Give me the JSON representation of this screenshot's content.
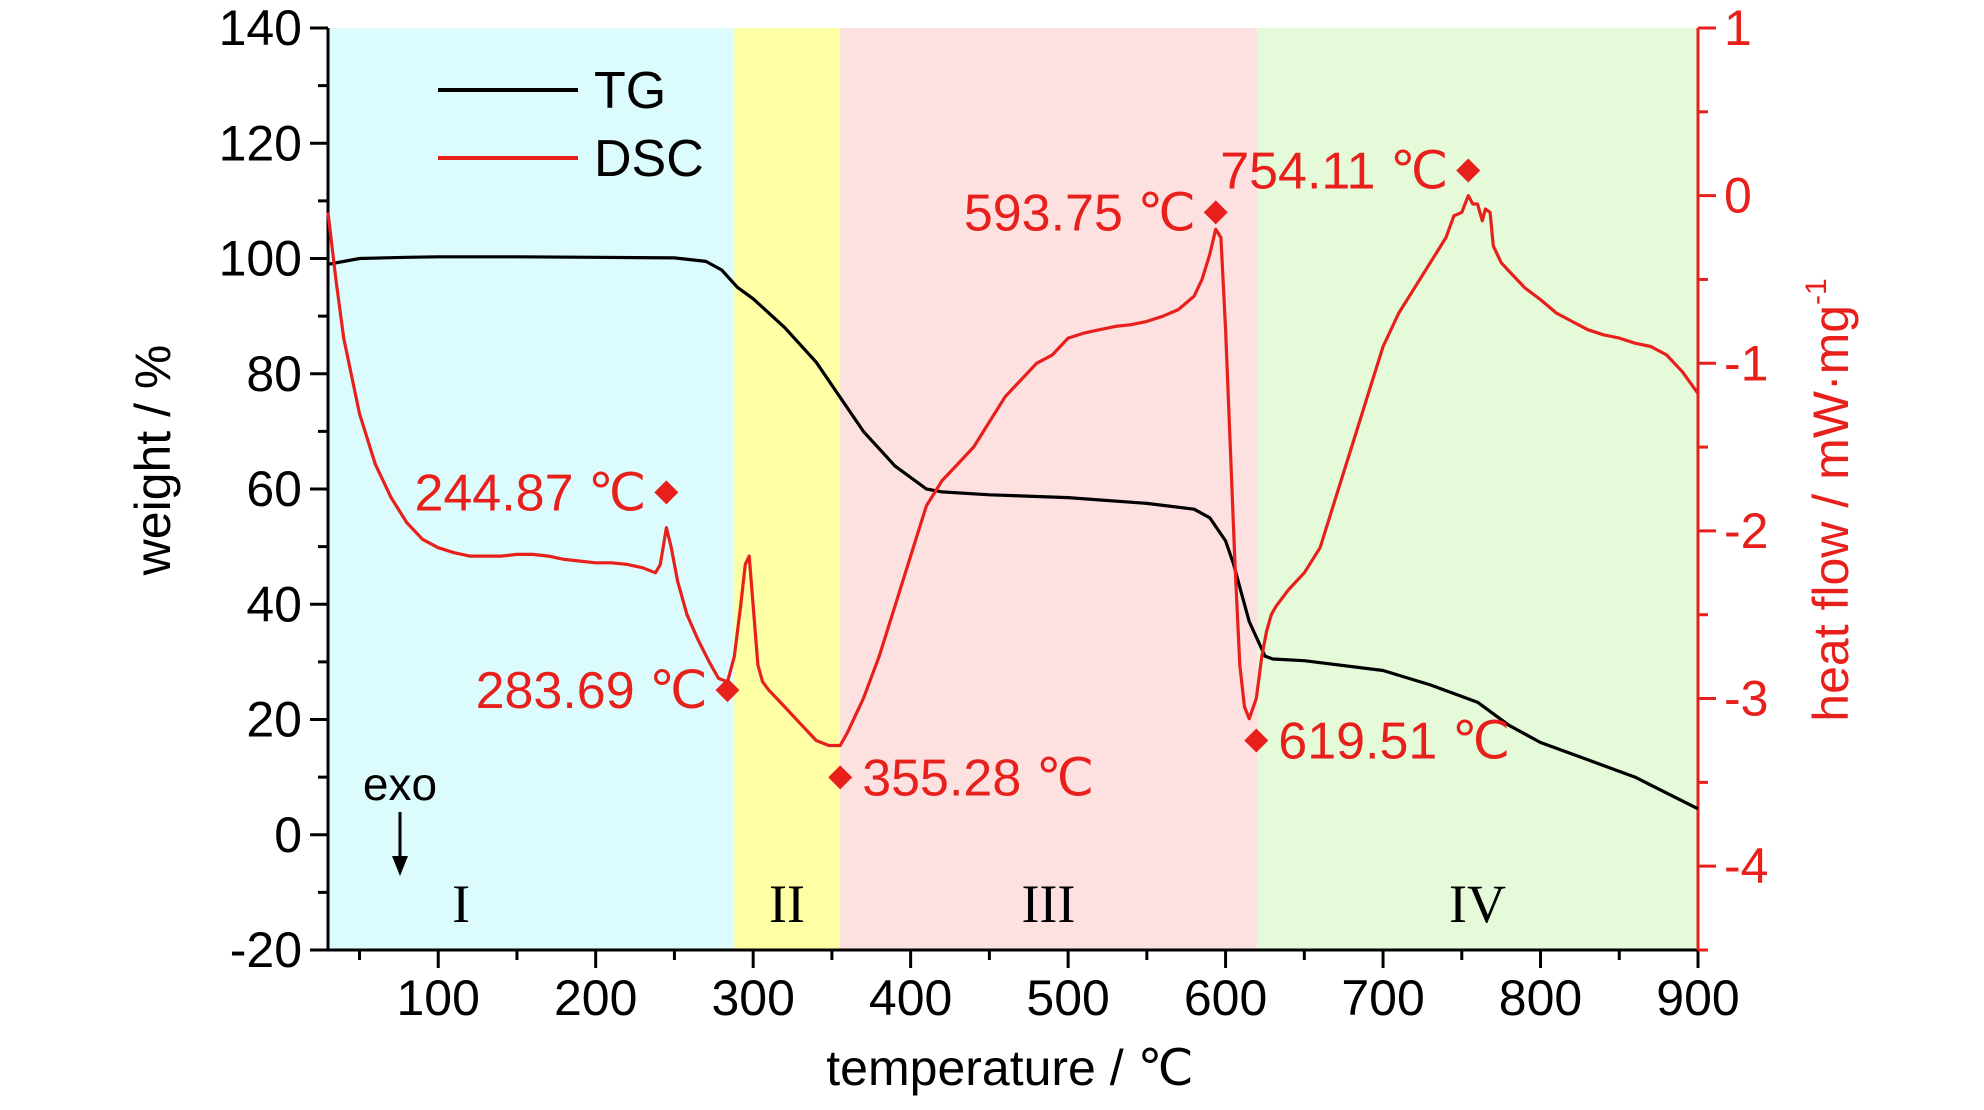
{
  "chart_data": {
    "type": "line",
    "xlabel": "temperature / ℃",
    "ylabel": "weight / %",
    "y2label_main": "heat flow / mW·mg",
    "y2label_sup": "-1",
    "xlim": [
      30,
      900
    ],
    "ylim": [
      -20,
      140
    ],
    "y2lim": [
      -4.5,
      1
    ],
    "x_ticks": [
      100,
      200,
      300,
      400,
      500,
      600,
      700,
      800,
      900
    ],
    "y_ticks": [
      -20,
      0,
      20,
      40,
      60,
      80,
      100,
      120,
      140
    ],
    "y2_ticks": [
      -4,
      -3,
      -2,
      -1,
      0,
      1
    ],
    "legend": [
      {
        "name": "TG",
        "color": "#000000"
      },
      {
        "name": "DSC",
        "color": "#e8201c"
      }
    ],
    "regions": [
      {
        "label": "I",
        "from": 30,
        "to": 288,
        "color": "#dcfbfd"
      },
      {
        "label": "II",
        "from": 288,
        "to": 355,
        "color": "#fefea4"
      },
      {
        "label": "III",
        "from": 355,
        "to": 620,
        "color": "#fde0e0"
      },
      {
        "label": "IV",
        "from": 620,
        "to": 900,
        "color": "#e4fad8"
      }
    ],
    "exo_label": "exo",
    "series": [
      {
        "name": "TG",
        "axis": "left",
        "color": "#000000",
        "x": [
          30,
          50,
          80,
          100,
          150,
          200,
          250,
          270,
          280,
          290,
          300,
          320,
          340,
          355,
          370,
          390,
          410,
          420,
          450,
          500,
          550,
          580,
          590,
          600,
          605,
          610,
          615,
          620,
          625,
          630,
          650,
          700,
          730,
          760,
          780,
          800,
          830,
          860,
          900
        ],
        "values": [
          99,
          100,
          100.2,
          100.3,
          100.3,
          100.2,
          100.1,
          99.5,
          98,
          95,
          93,
          88,
          82,
          76,
          70,
          64,
          60,
          59.5,
          59,
          58.5,
          57.5,
          56.5,
          55,
          51,
          47,
          42,
          37,
          34,
          31,
          30.5,
          30.2,
          28.5,
          26,
          23,
          19,
          16,
          13,
          10,
          4.5
        ]
      },
      {
        "name": "DSC",
        "axis": "right",
        "color": "#e8201c",
        "x": [
          30,
          35,
          40,
          50,
          60,
          70,
          80,
          90,
          100,
          110,
          120,
          130,
          140,
          150,
          160,
          170,
          180,
          190,
          200,
          210,
          220,
          230,
          238,
          241,
          244.87,
          248,
          252,
          258,
          265,
          272,
          278,
          283.69,
          288,
          292,
          295,
          297.5,
          300,
          303,
          306,
          310,
          315,
          320,
          330,
          340,
          348,
          355.28,
          360,
          365,
          370,
          380,
          390,
          400,
          410,
          420,
          430,
          440,
          450,
          460,
          470,
          480,
          490,
          500,
          510,
          520,
          530,
          540,
          550,
          560,
          570,
          580,
          585,
          590,
          593.75,
          597,
          600,
          603,
          606,
          609,
          612,
          615,
          619.51,
          623,
          626,
          629,
          632,
          640,
          650,
          660,
          670,
          680,
          690,
          700,
          710,
          720,
          730,
          740,
          745,
          750,
          754.11,
          757,
          760,
          763,
          765,
          768,
          770,
          775,
          780,
          790,
          800,
          810,
          820,
          830,
          840,
          850,
          860,
          870,
          880,
          890,
          900
        ],
        "values": [
          -0.1,
          -0.5,
          -0.85,
          -1.3,
          -1.6,
          -1.8,
          -1.95,
          -2.05,
          -2.1,
          -2.13,
          -2.15,
          -2.15,
          -2.15,
          -2.14,
          -2.14,
          -2.15,
          -2.17,
          -2.18,
          -2.19,
          -2.19,
          -2.2,
          -2.22,
          -2.25,
          -2.2,
          -1.98,
          -2.1,
          -2.3,
          -2.5,
          -2.65,
          -2.78,
          -2.88,
          -2.9,
          -2.75,
          -2.45,
          -2.2,
          -2.15,
          -2.45,
          -2.8,
          -2.9,
          -2.95,
          -3.0,
          -3.05,
          -3.15,
          -3.25,
          -3.28,
          -3.28,
          -3.2,
          -3.1,
          -3.0,
          -2.75,
          -2.45,
          -2.15,
          -1.85,
          -1.7,
          -1.6,
          -1.5,
          -1.35,
          -1.2,
          -1.1,
          -1.0,
          -0.95,
          -0.85,
          -0.82,
          -0.8,
          -0.78,
          -0.77,
          -0.75,
          -0.72,
          -0.68,
          -0.6,
          -0.5,
          -0.35,
          -0.2,
          -0.25,
          -0.8,
          -1.5,
          -2.2,
          -2.8,
          -3.05,
          -3.12,
          -3.0,
          -2.75,
          -2.6,
          -2.5,
          -2.45,
          -2.35,
          -2.25,
          -2.1,
          -1.8,
          -1.5,
          -1.2,
          -0.9,
          -0.7,
          -0.55,
          -0.4,
          -0.25,
          -0.12,
          -0.1,
          0.0,
          -0.05,
          -0.05,
          -0.15,
          -0.08,
          -0.1,
          -0.3,
          -0.4,
          -0.45,
          -0.55,
          -0.62,
          -0.7,
          -0.75,
          -0.8,
          -0.83,
          -0.85,
          -0.88,
          -0.9,
          -0.95,
          -1.05,
          -1.18
        ]
      }
    ],
    "annotations": [
      {
        "text": "244.87 ℃",
        "x": 244.87,
        "y": -1.77,
        "side": "left"
      },
      {
        "text": "283.69 ℃",
        "x": 283.69,
        "y": -2.95,
        "side": "left"
      },
      {
        "text": "355.28 ℃",
        "x": 355.28,
        "y": -3.47,
        "side": "right"
      },
      {
        "text": "593.75 ℃",
        "x": 593.75,
        "y": -0.1,
        "side": "left"
      },
      {
        "text": "619.51 ℃",
        "x": 619.51,
        "y": -3.25,
        "side": "right"
      },
      {
        "text": "754.11 ℃",
        "x": 754.11,
        "y": 0.15,
        "side": "left"
      }
    ]
  }
}
